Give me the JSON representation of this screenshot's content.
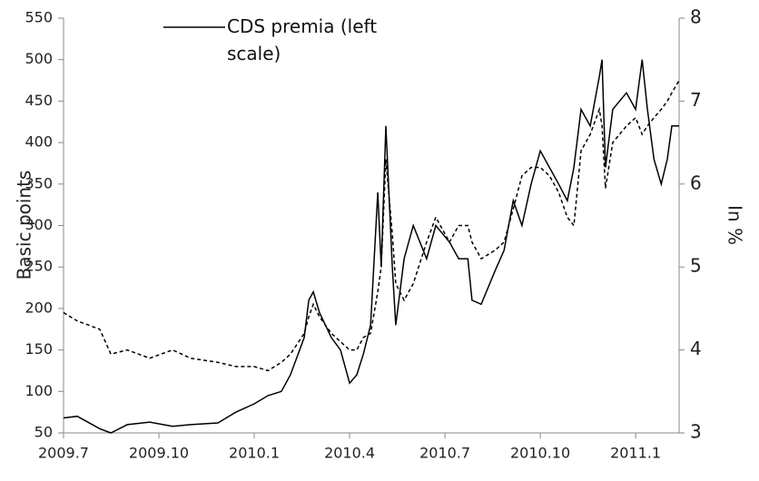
{
  "chart_data": {
    "type": "line",
    "ylabel": "Basic points",
    "y2label": "In %",
    "x": [
      2009.5,
      2009.536,
      2009.595,
      2009.624,
      2009.667,
      2009.726,
      2009.786,
      2009.833,
      2009.905,
      2009.952,
      2010.0,
      2010.036,
      2010.071,
      2010.095,
      2010.131,
      2010.143,
      2010.155,
      2010.171,
      2010.202,
      2010.226,
      2010.25,
      2010.269,
      2010.286,
      2010.305,
      2010.324,
      2010.333,
      2010.345,
      2010.362,
      2010.371,
      2010.393,
      2010.417,
      2010.452,
      2010.476,
      2010.512,
      2010.536,
      2010.56,
      2010.571,
      2010.595,
      2010.631,
      2010.655,
      2010.679,
      2010.702,
      2010.726,
      2010.75,
      2010.774,
      2010.798,
      2010.821,
      2010.838,
      2010.857,
      2010.881,
      2010.905,
      2010.912,
      2010.921,
      2010.94,
      2010.976,
      2011.0,
      2011.017,
      2011.031,
      2011.048,
      2011.067,
      2011.083,
      2011.095,
      2011.114
    ],
    "series": [
      {
        "name": "CDS premia (left scale)",
        "color": "#000000",
        "dash": false,
        "values": [
          68,
          70,
          55,
          50,
          60,
          63,
          58,
          60,
          62,
          75,
          85,
          95,
          100,
          120,
          165,
          210,
          220,
          195,
          165,
          150,
          110,
          120,
          145,
          180,
          340,
          250,
          420,
          250,
          180,
          260,
          300,
          260,
          300,
          280,
          260,
          260,
          210,
          205,
          245,
          270,
          330,
          300,
          350,
          390,
          370,
          350,
          330,
          370,
          440,
          420,
          480,
          500,
          370,
          440,
          460,
          440,
          500,
          440,
          380,
          350,
          380,
          420,
          420
        ]
      },
      {
        "color": "#000000",
        "dash": true,
        "axis": "y2",
        "values": [
          4.45,
          4.35,
          4.25,
          3.95,
          4.0,
          3.9,
          4.0,
          3.9,
          3.85,
          3.8,
          3.8,
          3.75,
          3.85,
          3.95,
          4.2,
          4.4,
          4.55,
          4.4,
          4.2,
          4.1,
          4.0,
          4.0,
          4.15,
          4.2,
          4.7,
          5.0,
          6.3,
          5.4,
          4.8,
          4.6,
          4.8,
          5.3,
          5.6,
          5.3,
          5.5,
          5.5,
          5.3,
          5.1,
          5.2,
          5.3,
          5.7,
          6.1,
          6.2,
          6.2,
          6.1,
          5.9,
          5.6,
          5.5,
          6.4,
          6.6,
          6.9,
          6.7,
          5.95,
          6.5,
          6.7,
          6.8,
          6.6,
          6.7,
          6.8,
          6.9,
          7.0,
          7.1,
          7.25
        ]
      }
    ],
    "xlim": [
      2009.5,
      2011.114
    ],
    "xticks": [
      {
        "value": 2009.5,
        "label": "2009.7"
      },
      {
        "value": 2009.75,
        "label": "2009.10"
      },
      {
        "value": 2010.0,
        "label": "2010.1"
      },
      {
        "value": 2010.25,
        "label": "2010.4"
      },
      {
        "value": 2010.5,
        "label": "2010.7"
      },
      {
        "value": 2010.75,
        "label": "2010.10"
      },
      {
        "value": 2011.0,
        "label": "2011.1"
      }
    ],
    "ylim": [
      50,
      550
    ],
    "yticks": [
      50,
      100,
      150,
      200,
      250,
      300,
      350,
      400,
      450,
      500,
      550
    ],
    "y2lim": [
      3,
      8
    ],
    "y2ticks": [
      3,
      4,
      5,
      6,
      7,
      8
    ],
    "grid": false
  }
}
